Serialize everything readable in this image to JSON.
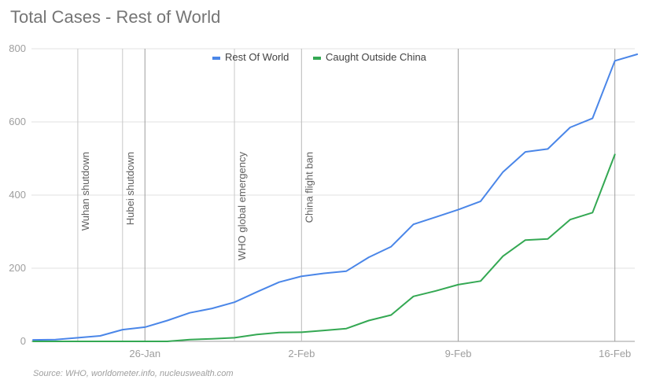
{
  "chart_data": {
    "type": "line",
    "title": "Total Cases - Rest of World",
    "source": "Source: WHO, worldometer.info, nucleuswealth.com",
    "ylim": [
      0,
      800
    ],
    "yticks": [
      0,
      200,
      400,
      600,
      800
    ],
    "grid": true,
    "legend_position": "top-center",
    "x": [
      "2020-01-21",
      "2020-01-22",
      "2020-01-23",
      "2020-01-24",
      "2020-01-25",
      "2020-01-26",
      "2020-01-27",
      "2020-01-28",
      "2020-01-29",
      "2020-01-30",
      "2020-01-31",
      "2020-02-01",
      "2020-02-02",
      "2020-02-03",
      "2020-02-04",
      "2020-02-05",
      "2020-02-06",
      "2020-02-07",
      "2020-02-08",
      "2020-02-09",
      "2020-02-10",
      "2020-02-11",
      "2020-02-12",
      "2020-02-13",
      "2020-02-14",
      "2020-02-15",
      "2020-02-16",
      "2020-02-17"
    ],
    "xticks": [
      {
        "date": "2020-01-26",
        "label": "26-Jan"
      },
      {
        "date": "2020-02-02",
        "label": "2-Feb"
      },
      {
        "date": "2020-02-09",
        "label": "9-Feb"
      },
      {
        "date": "2020-02-16",
        "label": "16-Feb"
      }
    ],
    "series": [
      {
        "name": "Rest Of World",
        "color": "#4a86e8",
        "values": [
          4,
          5,
          10,
          15,
          32,
          39,
          57,
          78,
          90,
          107,
          135,
          162,
          178,
          186,
          192,
          230,
          259,
          320,
          340,
          360,
          383,
          463,
          518,
          526,
          585,
          610,
          767,
          785
        ]
      },
      {
        "name": "Caught Outside China",
        "color": "#34a853",
        "values": [
          0,
          0,
          0,
          0,
          0,
          0,
          0,
          5,
          7,
          10,
          19,
          24,
          25,
          30,
          35,
          57,
          72,
          123,
          138,
          155,
          165,
          233,
          277,
          280,
          333,
          352,
          511,
          null
        ]
      }
    ],
    "annotations": [
      {
        "date": "2020-01-23",
        "label": "Wuhan shutdown"
      },
      {
        "date": "2020-01-25",
        "label": "Hubei shutdown"
      },
      {
        "date": "2020-01-30",
        "label": "WHO global emergency"
      },
      {
        "date": "2020-02-02",
        "label": "China flight ban"
      }
    ]
  }
}
